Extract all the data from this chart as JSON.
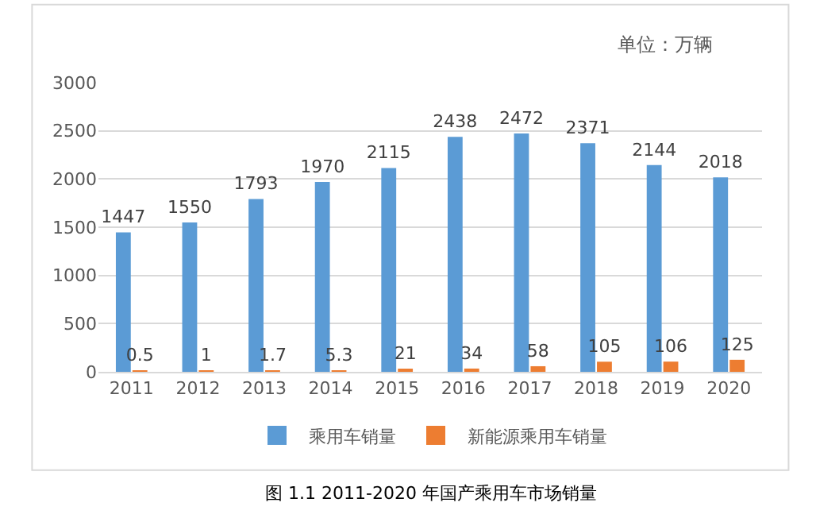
{
  "chart_data": {
    "type": "bar",
    "categories": [
      "2011",
      "2012",
      "2013",
      "2014",
      "2015",
      "2016",
      "2017",
      "2018",
      "2019",
      "2020"
    ],
    "series": [
      {
        "name": "乘用车销量",
        "color": "#5b9bd5",
        "values": [
          1447,
          1550,
          1793,
          1970,
          2115,
          2438,
          2472,
          2371,
          2144,
          2018
        ]
      },
      {
        "name": "新能源乘用车销量",
        "color": "#ed7d31",
        "values": [
          0.5,
          1,
          1.7,
          5.3,
          21,
          34,
          58,
          105,
          106,
          125
        ]
      }
    ],
    "ylim": [
      0,
      3000
    ],
    "yticks": [
      0,
      500,
      1000,
      1500,
      2000,
      2500,
      3000
    ],
    "grid": "y",
    "legend": "bottom",
    "data_labels": true,
    "annotations": [
      "单位：万辆",
      "图 1.1 2011-2020 年国产乘用车市场销量"
    ]
  }
}
